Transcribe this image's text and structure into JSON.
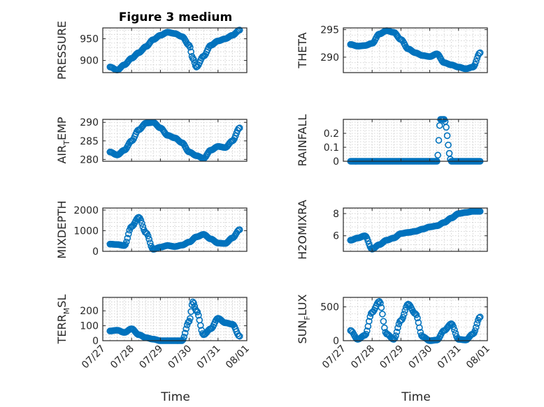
{
  "figure": {
    "title": "Figure 3 medium",
    "marker_color": "#0072BD",
    "x_label": "Time",
    "x_ticks": [
      "07/27",
      "07/28",
      "07/29",
      "07/30",
      "07/31",
      "08/01"
    ]
  },
  "chart_data": [
    {
      "type": "scatter",
      "ylabel": "PRESSURE",
      "yticks": [
        900,
        950
      ],
      "ylim": [
        872,
        975
      ],
      "xlim": [
        "07/27",
        "08/01"
      ],
      "grid": true,
      "x": [
        "07/27 06:00",
        "07/27 12:00",
        "07/27 18:00",
        "07/28 00:00",
        "07/28 06:00",
        "07/28 12:00",
        "07/28 18:00",
        "07/29 00:00",
        "07/29 06:00",
        "07/29 12:00",
        "07/29 18:00",
        "07/30 00:00",
        "07/30 03:00",
        "07/30 06:00",
        "07/30 12:00",
        "07/30 18:00",
        "07/31 00:00",
        "07/31 06:00",
        "07/31 12:00",
        "07/31 18:00"
      ],
      "y": [
        885,
        878,
        890,
        905,
        918,
        932,
        948,
        958,
        965,
        962,
        955,
        935,
        905,
        885,
        910,
        935,
        945,
        950,
        958,
        970
      ]
    },
    {
      "type": "scatter",
      "ylabel": "THETA",
      "yticks": [
        290,
        295
      ],
      "ylim": [
        287.2,
        295.3
      ],
      "xlim": [
        "07/27",
        "08/01"
      ],
      "grid": true,
      "x": [
        "07/27 06:00",
        "07/27 12:00",
        "07/27 18:00",
        "07/28 00:00",
        "07/28 06:00",
        "07/28 12:00",
        "07/28 18:00",
        "07/29 00:00",
        "07/29 06:00",
        "07/29 12:00",
        "07/29 18:00",
        "07/30 00:00",
        "07/30 06:00",
        "07/30 12:00",
        "07/30 18:00",
        "07/31 00:00",
        "07/31 06:00",
        "07/31 12:00",
        "07/31 18:00"
      ],
      "y": [
        292.3,
        292.0,
        292.1,
        292.5,
        294.2,
        294.8,
        294.5,
        293.2,
        291.5,
        290.8,
        290.3,
        290.1,
        290.6,
        289.0,
        288.6,
        288.2,
        287.9,
        288.2,
        290.8
      ]
    },
    {
      "type": "scatter",
      "ylabel": "AIR_TEMP",
      "yticks": [
        280,
        285,
        290
      ],
      "ylim": [
        279.5,
        290.8
      ],
      "xlim": [
        "07/27",
        "08/01"
      ],
      "grid": true,
      "x": [
        "07/27 06:00",
        "07/27 12:00",
        "07/27 18:00",
        "07/28 00:00",
        "07/28 06:00",
        "07/28 12:00",
        "07/28 18:00",
        "07/29 00:00",
        "07/29 06:00",
        "07/29 12:00",
        "07/29 18:00",
        "07/30 00:00",
        "07/30 06:00",
        "07/30 12:00",
        "07/30 18:00",
        "07/31 00:00",
        "07/31 06:00",
        "07/31 12:00",
        "07/31 18:00"
      ],
      "y": [
        282.0,
        281.2,
        282.5,
        285.0,
        288.0,
        289.8,
        290.0,
        288.5,
        286.5,
        285.8,
        284.5,
        282.0,
        281.0,
        280.3,
        282.5,
        283.5,
        283.2,
        285.0,
        288.5
      ]
    },
    {
      "type": "scatter",
      "ylabel": "RAINFALL",
      "yticks": [
        0,
        0.1,
        0.2
      ],
      "ylim": [
        0,
        0.3
      ],
      "xlim": [
        "07/27",
        "08/01"
      ],
      "grid": true,
      "x": [
        "07/27 06:00",
        "07/27 12:00",
        "07/27 18:00",
        "07/28 00:00",
        "07/28 06:00",
        "07/28 12:00",
        "07/28 18:00",
        "07/29 00:00",
        "07/29 06:00",
        "07/29 12:00",
        "07/29 18:00",
        "07/30 00:00",
        "07/30 06:00",
        "07/30 09:00",
        "07/30 12:00",
        "07/30 18:00",
        "07/31 00:00",
        "07/31 06:00",
        "07/31 12:00",
        "07/31 18:00"
      ],
      "y": [
        0,
        0,
        0,
        0,
        0,
        0,
        0,
        0,
        0,
        0,
        0,
        0,
        0,
        0.3,
        0.3,
        0,
        0,
        0,
        0,
        0
      ]
    },
    {
      "type": "scatter",
      "ylabel": "MIXDEPTH",
      "yticks": [
        0,
        1000,
        2000
      ],
      "ylim": [
        0,
        2100
      ],
      "xlim": [
        "07/27",
        "08/01"
      ],
      "grid": true,
      "x": [
        "07/27 06:00",
        "07/27 12:00",
        "07/27 18:00",
        "07/28 00:00",
        "07/28 06:00",
        "07/28 12:00",
        "07/28 18:00",
        "07/29 00:00",
        "07/29 06:00",
        "07/29 12:00",
        "07/29 18:00",
        "07/30 00:00",
        "07/30 06:00",
        "07/30 12:00",
        "07/30 18:00",
        "07/31 00:00",
        "07/31 06:00",
        "07/31 12:00",
        "07/31 18:00"
      ],
      "y": [
        350,
        330,
        280,
        1200,
        1650,
        900,
        100,
        200,
        280,
        230,
        300,
        450,
        700,
        820,
        600,
        400,
        380,
        650,
        1050
      ]
    },
    {
      "type": "scatter",
      "ylabel": "H2OMIXRA",
      "yticks": [
        6,
        8
      ],
      "ylim": [
        4.6,
        8.5
      ],
      "xlim": [
        "07/27",
        "08/01"
      ],
      "grid": true,
      "x": [
        "07/27 06:00",
        "07/27 12:00",
        "07/27 18:00",
        "07/28 00:00",
        "07/28 06:00",
        "07/28 12:00",
        "07/28 18:00",
        "07/29 00:00",
        "07/29 06:00",
        "07/29 12:00",
        "07/29 18:00",
        "07/30 00:00",
        "07/30 06:00",
        "07/30 12:00",
        "07/30 18:00",
        "07/31 00:00",
        "07/31 06:00",
        "07/31 12:00",
        "07/31 18:00"
      ],
      "y": [
        5.6,
        5.8,
        6.0,
        4.8,
        5.2,
        5.6,
        5.8,
        6.2,
        6.3,
        6.4,
        6.6,
        6.8,
        6.9,
        7.2,
        7.6,
        8.0,
        8.1,
        8.2,
        8.2
      ]
    },
    {
      "type": "scatter",
      "ylabel": "TERR_MSL",
      "yticks": [
        0,
        100,
        200
      ],
      "ylim": [
        0,
        290
      ],
      "xlim": [
        "07/27",
        "08/01"
      ],
      "grid": true,
      "x": [
        "07/27 06:00",
        "07/27 12:00",
        "07/27 18:00",
        "07/28 00:00",
        "07/28 06:00",
        "07/28 12:00",
        "07/28 18:00",
        "07/29 00:00",
        "07/29 06:00",
        "07/29 12:00",
        "07/29 18:00",
        "07/30 00:00",
        "07/30 03:00",
        "07/30 06:00",
        "07/30 12:00",
        "07/30 18:00",
        "07/31 00:00",
        "07/31 06:00",
        "07/31 12:00",
        "07/31 18:00"
      ],
      "y": [
        65,
        70,
        55,
        80,
        40,
        20,
        10,
        0,
        0,
        0,
        0,
        130,
        260,
        200,
        40,
        80,
        150,
        120,
        110,
        30
      ]
    },
    {
      "type": "scatter",
      "ylabel": "SUN_FLUX",
      "yticks": [
        0,
        500
      ],
      "ylim": [
        0,
        640
      ],
      "xlim": [
        "07/27",
        "08/01"
      ],
      "grid": true,
      "x": [
        "07/27 06:00",
        "07/27 12:00",
        "07/27 18:00",
        "07/28 00:00",
        "07/28 06:00",
        "07/28 12:00",
        "07/28 18:00",
        "07/29 00:00",
        "07/29 06:00",
        "07/29 12:00",
        "07/29 18:00",
        "07/30 00:00",
        "07/30 06:00",
        "07/30 12:00",
        "07/30 18:00",
        "07/31 00:00",
        "07/31 06:00",
        "07/31 12:00",
        "07/31 18:00"
      ],
      "y": [
        150,
        20,
        80,
        420,
        580,
        100,
        20,
        300,
        540,
        400,
        60,
        0,
        10,
        150,
        250,
        20,
        10,
        100,
        350
      ]
    }
  ]
}
